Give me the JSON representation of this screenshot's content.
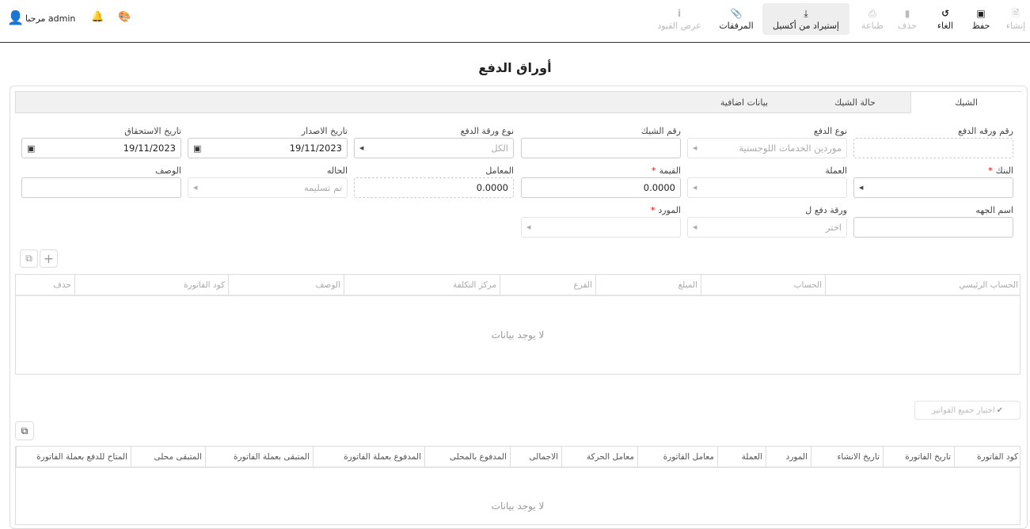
{
  "header": {
    "greeting": "مرحبا admin",
    "icons": [
      "user-icon",
      "bell-icon",
      "palette-icon"
    ]
  },
  "toolbar": [
    {
      "label": "إنشاء",
      "icon": "file-icon",
      "disabled": true
    },
    {
      "label": "حفظ",
      "icon": "save-icon",
      "disabled": false
    },
    {
      "label": "الغاء",
      "icon": "undo-icon",
      "disabled": false
    },
    {
      "label": "حذف",
      "icon": "trash-icon",
      "disabled": true
    },
    {
      "label": "طباعة",
      "icon": "print-icon",
      "disabled": true
    },
    {
      "label": "إستيراد من أكسيل",
      "icon": "download-icon",
      "disabled": false
    },
    {
      "label": "المرفقات",
      "icon": "paperclip-icon",
      "disabled": false
    },
    {
      "label": "عرض القيود",
      "icon": "info-icon",
      "disabled": true
    }
  ],
  "page_title": "أوراق الدفع",
  "tabs": [
    "الشيك",
    "حالة الشيك",
    "بيانات اضافية"
  ],
  "form": {
    "payment_paper_no": {
      "label": "رقم ورقه الدفع",
      "value": ""
    },
    "payment_type": {
      "label": "نوع الدفع",
      "value": "موردين الخدمات اللوجستية"
    },
    "check_no": {
      "label": "رقم الشيك",
      "value": ""
    },
    "paper_type": {
      "label": "نوع ورقة الدفع",
      "value": "الكل"
    },
    "issue_date": {
      "label": "تاريخ الاصدار",
      "value": "19/11/2023"
    },
    "due_date": {
      "label": "تاريخ الاستحقاق",
      "value": "19/11/2023"
    },
    "bank": {
      "label": "البنك",
      "required": true,
      "value": ""
    },
    "currency": {
      "label": "العملة",
      "value": ""
    },
    "amount": {
      "label": "القيمة",
      "required": true,
      "value": "0.0000"
    },
    "rate": {
      "label": "المعامل",
      "value": "0.0000"
    },
    "status": {
      "label": "الحاله",
      "value": "تم تسليمه"
    },
    "description": {
      "label": "الوصف",
      "value": ""
    },
    "party_name": {
      "label": "اسم الجهه",
      "value": ""
    },
    "paper_for": {
      "label": "ورقة دفع ل",
      "placeholder": "اختر"
    },
    "supplier": {
      "label": "المورد",
      "required": true,
      "value": ""
    }
  },
  "lines_table": {
    "columns": [
      "الحساب الرئيسي",
      "الحساب",
      "المبلغ",
      "الفرع",
      "مركز التكلفة",
      "الوصف",
      "كود الفاتورة",
      "حذف"
    ],
    "empty": "لا يوجد بيانات"
  },
  "select_all_label": "اختيار جميع الفواتير",
  "invoices_table": {
    "columns": [
      "كود الفاتورة",
      "تاريخ الفاتورة",
      "تاريخ الانشاء",
      "المورد",
      "العملة",
      "معامل الفاتورة",
      "معامل الحركة",
      "الاجمالى",
      "المدفوع بالمحلى",
      "المدفوع بعملة الفاتورة",
      "المتبقى بعملة الفاتورة",
      "المتبقى محلى",
      "المتاح للدفع بعملة الفاتورة"
    ],
    "empty": "لا يوجد بيانات"
  }
}
